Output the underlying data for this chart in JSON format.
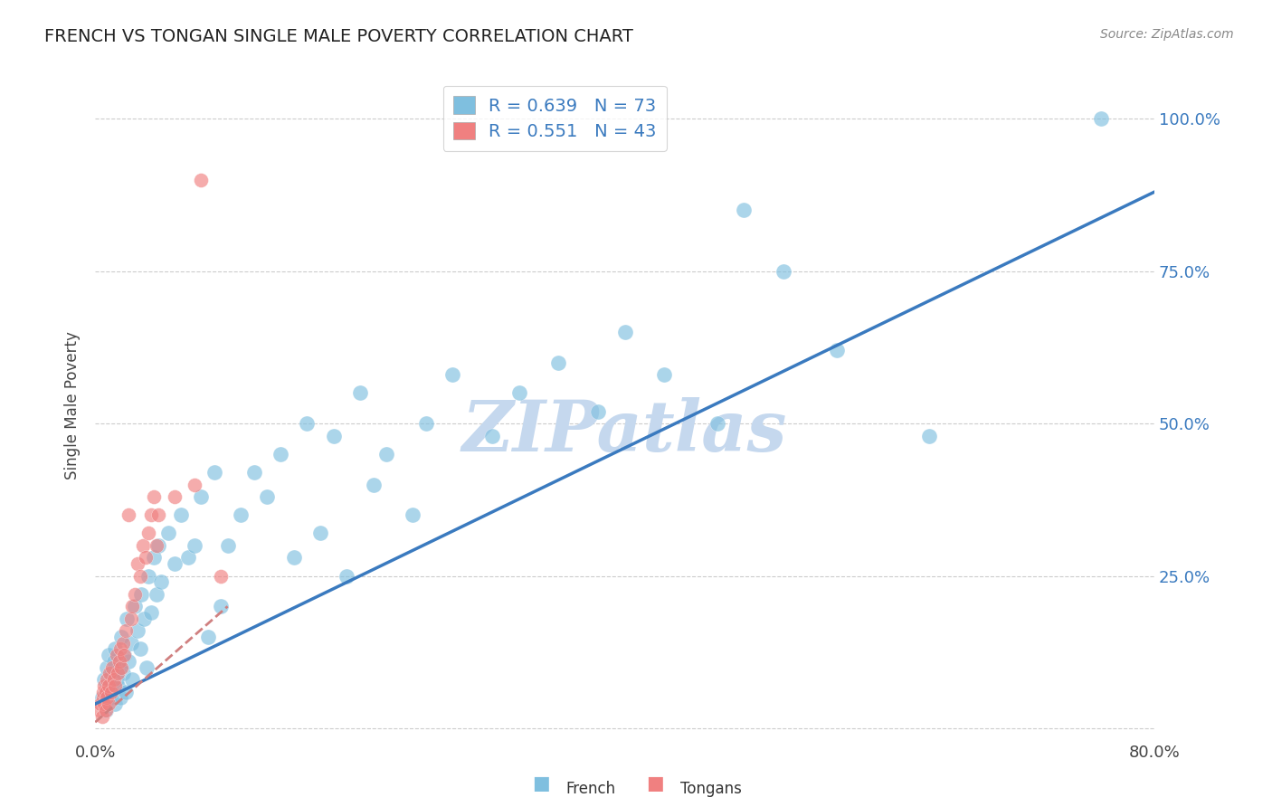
{
  "title": "FRENCH VS TONGAN SINGLE MALE POVERTY CORRELATION CHART",
  "source": "Source: ZipAtlas.com",
  "ylabel": "Single Male Poverty",
  "xlim": [
    0.0,
    0.8
  ],
  "ylim": [
    -0.02,
    1.08
  ],
  "x_ticks": [
    0.0,
    0.1,
    0.2,
    0.3,
    0.4,
    0.5,
    0.6,
    0.7,
    0.8
  ],
  "y_ticks": [
    0.0,
    0.25,
    0.5,
    0.75,
    1.0
  ],
  "y_tick_labels": [
    "",
    "25.0%",
    "50.0%",
    "75.0%",
    "100.0%"
  ],
  "french_color": "#7fbfdf",
  "tongan_color": "#f08080",
  "french_line_color": "#3a7abf",
  "tongan_line_color": "#d08080",
  "watermark": "ZIPatlas",
  "watermark_color": "#c5d8ee",
  "legend_french_r": "R = 0.639",
  "legend_french_n": "N = 73",
  "legend_tongan_r": "R = 0.551",
  "legend_tongan_n": "N = 43",
  "french_x": [
    0.005,
    0.007,
    0.008,
    0.009,
    0.01,
    0.01,
    0.011,
    0.012,
    0.013,
    0.014,
    0.015,
    0.015,
    0.016,
    0.017,
    0.018,
    0.019,
    0.02,
    0.021,
    0.022,
    0.023,
    0.024,
    0.025,
    0.027,
    0.028,
    0.03,
    0.032,
    0.034,
    0.035,
    0.037,
    0.039,
    0.04,
    0.042,
    0.044,
    0.046,
    0.048,
    0.05,
    0.055,
    0.06,
    0.065,
    0.07,
    0.075,
    0.08,
    0.085,
    0.09,
    0.095,
    0.1,
    0.11,
    0.12,
    0.13,
    0.14,
    0.15,
    0.16,
    0.17,
    0.18,
    0.19,
    0.2,
    0.21,
    0.22,
    0.24,
    0.25,
    0.27,
    0.3,
    0.32,
    0.35,
    0.38,
    0.4,
    0.43,
    0.47,
    0.49,
    0.52,
    0.56,
    0.63,
    0.76
  ],
  "french_y": [
    0.05,
    0.08,
    0.03,
    0.1,
    0.07,
    0.12,
    0.05,
    0.09,
    0.06,
    0.11,
    0.04,
    0.13,
    0.08,
    0.07,
    0.1,
    0.05,
    0.15,
    0.09,
    0.12,
    0.06,
    0.18,
    0.11,
    0.14,
    0.08,
    0.2,
    0.16,
    0.13,
    0.22,
    0.18,
    0.1,
    0.25,
    0.19,
    0.28,
    0.22,
    0.3,
    0.24,
    0.32,
    0.27,
    0.35,
    0.28,
    0.3,
    0.38,
    0.15,
    0.42,
    0.2,
    0.3,
    0.35,
    0.42,
    0.38,
    0.45,
    0.28,
    0.5,
    0.32,
    0.48,
    0.25,
    0.55,
    0.4,
    0.45,
    0.35,
    0.5,
    0.58,
    0.48,
    0.55,
    0.6,
    0.52,
    0.65,
    0.58,
    0.5,
    0.85,
    0.75,
    0.62,
    0.48,
    1.0
  ],
  "tongan_x": [
    0.003,
    0.004,
    0.005,
    0.006,
    0.006,
    0.007,
    0.007,
    0.008,
    0.008,
    0.009,
    0.009,
    0.01,
    0.01,
    0.011,
    0.012,
    0.013,
    0.014,
    0.015,
    0.016,
    0.017,
    0.018,
    0.019,
    0.02,
    0.021,
    0.022,
    0.023,
    0.025,
    0.027,
    0.028,
    0.03,
    0.032,
    0.034,
    0.036,
    0.038,
    0.04,
    0.042,
    0.044,
    0.046,
    0.048,
    0.06,
    0.075,
    0.08,
    0.095
  ],
  "tongan_y": [
    0.03,
    0.04,
    0.02,
    0.05,
    0.06,
    0.04,
    0.07,
    0.03,
    0.06,
    0.05,
    0.08,
    0.04,
    0.07,
    0.09,
    0.06,
    0.1,
    0.08,
    0.07,
    0.12,
    0.09,
    0.11,
    0.13,
    0.1,
    0.14,
    0.12,
    0.16,
    0.35,
    0.18,
    0.2,
    0.22,
    0.27,
    0.25,
    0.3,
    0.28,
    0.32,
    0.35,
    0.38,
    0.3,
    0.35,
    0.38,
    0.4,
    0.9,
    0.25
  ],
  "french_line_x": [
    0.0,
    0.8
  ],
  "french_line_y": [
    0.04,
    0.88
  ],
  "tongan_line_x": [
    0.0,
    0.1
  ],
  "tongan_line_y": [
    0.01,
    0.2
  ]
}
